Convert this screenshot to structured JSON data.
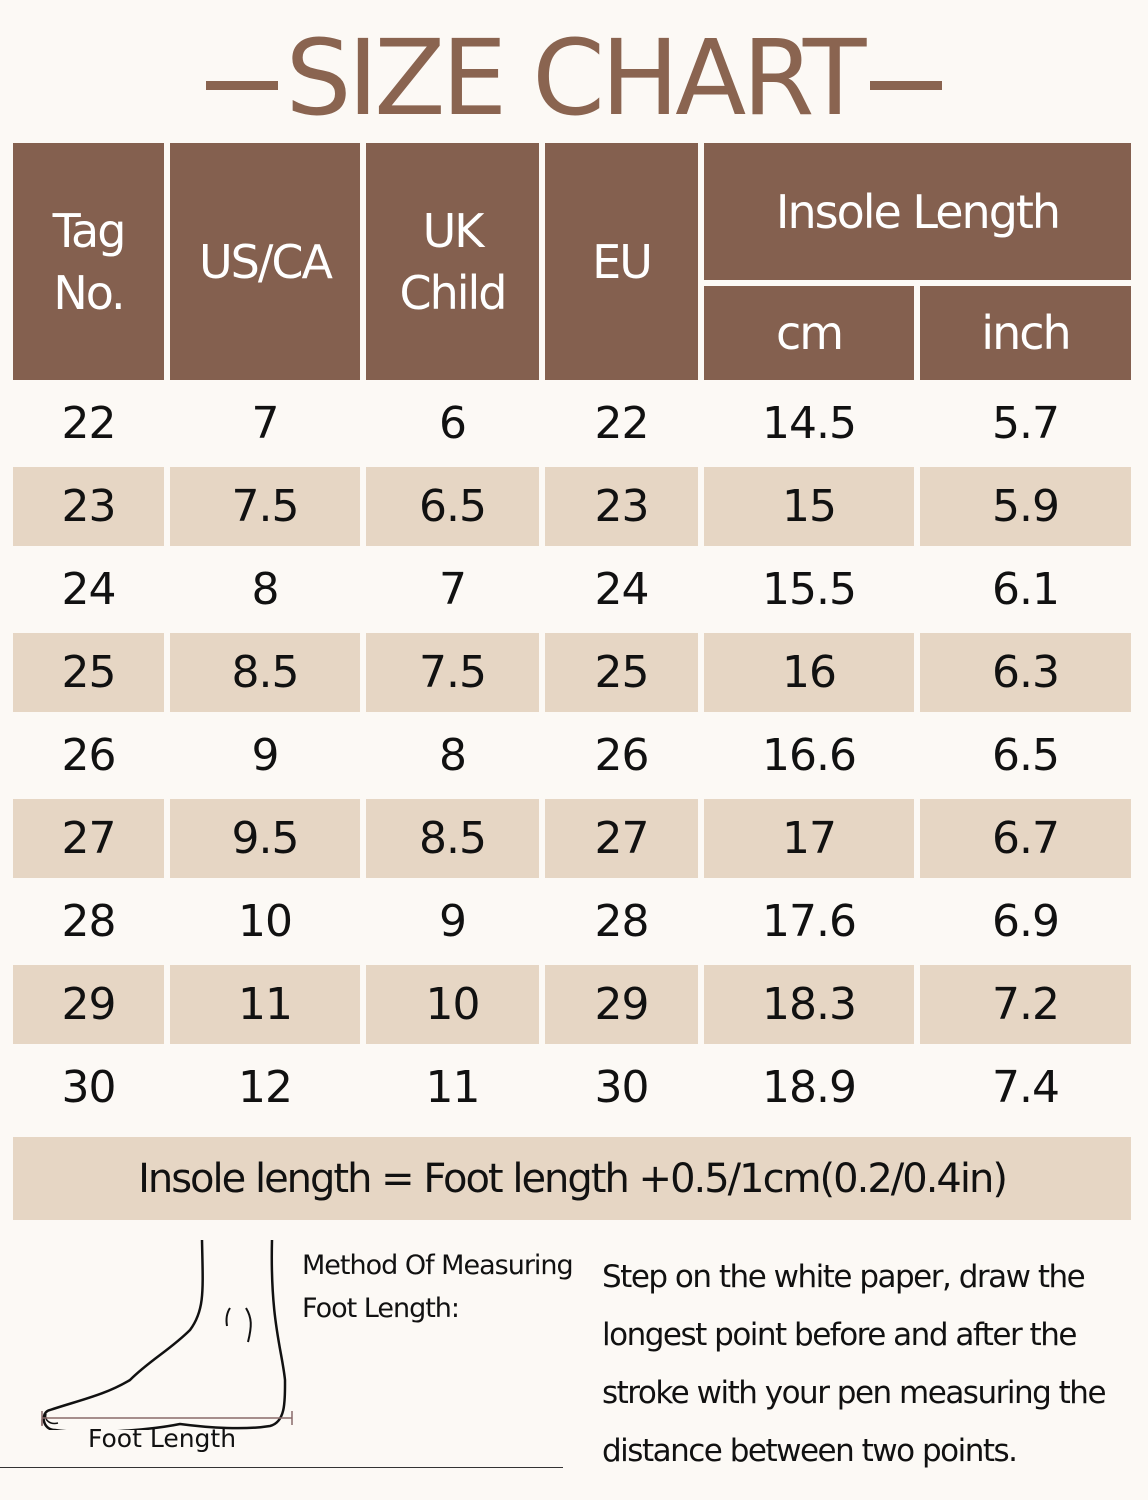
{
  "title": "SIZE CHART",
  "colors": {
    "header": "#84604f",
    "shade": "#e6d6c4",
    "title": "#8a6450",
    "background": "#fcf9f5"
  },
  "headers": {
    "tag": "Tag No.",
    "us": "US/CA",
    "uk": "UK Child",
    "eu": "EU",
    "insole": "Insole Length",
    "cm": "cm",
    "inch": "inch"
  },
  "rows": [
    [
      "22",
      "7",
      "6",
      "22",
      "14.5",
      "5.7"
    ],
    [
      "23",
      "7.5",
      "6.5",
      "23",
      "15",
      "5.9"
    ],
    [
      "24",
      "8",
      "7",
      "24",
      "15.5",
      "6.1"
    ],
    [
      "25",
      "8.5",
      "7.5",
      "25",
      "16",
      "6.3"
    ],
    [
      "26",
      "9",
      "8",
      "26",
      "16.6",
      "6.5"
    ],
    [
      "27",
      "9.5",
      "8.5",
      "27",
      "17",
      "6.7"
    ],
    [
      "28",
      "10",
      "9",
      "28",
      "17.6",
      "6.9"
    ],
    [
      "29",
      "11",
      "10",
      "29",
      "18.3",
      "7.2"
    ],
    [
      "30",
      "12",
      "11",
      "30",
      "18.9",
      "7.4"
    ]
  ],
  "footer_note": "Insole length = Foot length +0.5/1cm(0.2/0.4in)",
  "method": {
    "line1": "Method Of Measuring",
    "line2": "Foot Length:"
  },
  "foot_label": "Foot Length",
  "instructions": "Step on the white paper, draw the longest point before and after the stroke with your pen measuring the distance between two points."
}
